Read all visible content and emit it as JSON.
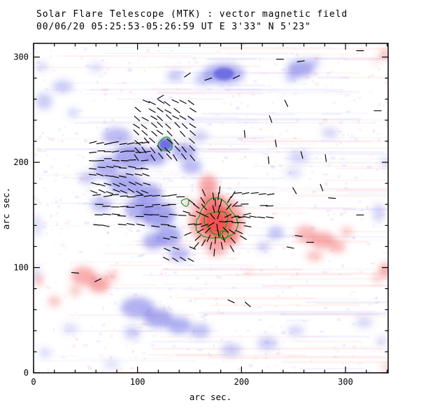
{
  "header": {
    "title_line1": "Solar Flare Telescope (MTK) : vector magnetic field",
    "title_line2": "00/06/20  05:25:53-05:26:59 UT    E 3'33\"  N 5'23\""
  },
  "chart_data": {
    "type": "heatmap",
    "title": "Solar Flare Telescope (MTK) : vector magnetic field",
    "datetime": "00/06/20 05:25:53-05:26:59 UT",
    "pointing": "E 3'33\" N 5'23\"",
    "xlabel": "arc sec.",
    "ylabel": "arc sec.",
    "xlim": [
      0,
      341
    ],
    "ylim": [
      0,
      313
    ],
    "x_ticks": [
      0,
      100,
      200,
      300
    ],
    "y_ticks": [
      0,
      100,
      200,
      300
    ],
    "minor_tick_step": 20,
    "colors": {
      "positive": "#f05050",
      "negative": "#5555e0",
      "positive_noise": "#ff8888",
      "negative_noise": "#8a8aff",
      "contour": "#00a000",
      "vector": "#000000"
    },
    "negative_regions": [
      [
        183,
        284,
        20,
        10,
        0.45
      ],
      [
        183,
        284,
        10,
        6,
        0.7
      ],
      [
        163,
        279,
        9,
        6,
        0.3
      ],
      [
        136,
        282,
        8,
        5,
        0.35
      ],
      [
        257,
        289,
        13,
        8,
        0.5
      ],
      [
        248,
        281,
        6,
        5,
        0.3
      ],
      [
        270,
        295,
        6,
        4,
        0.3
      ],
      [
        28,
        272,
        10,
        6,
        0.3
      ],
      [
        10,
        258,
        8,
        8,
        0.3
      ],
      [
        38,
        247,
        5,
        4,
        0.3
      ],
      [
        8,
        291,
        6,
        4,
        0.25
      ],
      [
        60,
        290,
        7,
        4,
        0.22
      ],
      [
        80,
        225,
        14,
        8,
        0.4
      ],
      [
        95,
        205,
        18,
        12,
        0.5
      ],
      [
        70,
        195,
        12,
        10,
        0.45
      ],
      [
        88,
        180,
        16,
        10,
        0.5
      ],
      [
        110,
        170,
        14,
        10,
        0.5
      ],
      [
        120,
        150,
        16,
        12,
        0.55
      ],
      [
        100,
        155,
        12,
        10,
        0.45
      ],
      [
        130,
        130,
        12,
        10,
        0.5
      ],
      [
        115,
        125,
        10,
        8,
        0.45
      ],
      [
        140,
        113,
        10,
        7,
        0.4
      ],
      [
        65,
        160,
        10,
        8,
        0.35
      ],
      [
        52,
        185,
        8,
        6,
        0.3
      ],
      [
        145,
        210,
        12,
        8,
        0.45
      ],
      [
        127,
        217,
        7,
        6,
        0.85
      ],
      [
        152,
        196,
        10,
        7,
        0.4
      ],
      [
        160,
        225,
        8,
        6,
        0.25
      ],
      [
        118,
        205,
        10,
        8,
        0.5
      ],
      [
        100,
        62,
        16,
        10,
        0.45
      ],
      [
        120,
        52,
        14,
        9,
        0.5
      ],
      [
        140,
        45,
        12,
        8,
        0.45
      ],
      [
        160,
        40,
        10,
        7,
        0.35
      ],
      [
        95,
        38,
        8,
        6,
        0.3
      ],
      [
        190,
        22,
        10,
        6,
        0.3
      ],
      [
        75,
        8,
        8,
        4,
        0.2
      ],
      [
        35,
        42,
        8,
        5,
        0.2
      ],
      [
        11,
        19,
        6,
        4,
        0.25
      ],
      [
        255,
        205,
        10,
        6,
        0.25
      ],
      [
        285,
        228,
        8,
        5,
        0.25
      ],
      [
        250,
        190,
        8,
        5,
        0.2
      ],
      [
        233,
        133,
        8,
        6,
        0.35
      ],
      [
        221,
        120,
        6,
        5,
        0.28
      ],
      [
        225,
        28,
        10,
        6,
        0.3
      ],
      [
        252,
        40,
        8,
        5,
        0.25
      ],
      [
        318,
        48,
        8,
        5,
        0.25
      ],
      [
        335,
        30,
        6,
        5,
        0.2
      ],
      [
        332,
        152,
        6,
        9,
        0.25
      ],
      [
        339,
        200,
        5,
        6,
        0.2
      ],
      [
        3,
        140,
        5,
        10,
        0.2
      ],
      [
        2,
        95,
        4,
        8,
        0.2
      ]
    ],
    "positive_regions": [
      [
        176,
        144,
        26,
        24,
        0.5
      ],
      [
        176,
        144,
        16,
        15,
        0.72
      ],
      [
        175,
        142,
        9,
        9,
        0.88
      ],
      [
        168,
        178,
        9,
        10,
        0.5
      ],
      [
        170,
        163,
        10,
        8,
        0.5
      ],
      [
        150,
        162,
        5,
        4,
        0.3
      ],
      [
        176,
        117,
        10,
        6,
        0.4
      ],
      [
        190,
        128,
        8,
        7,
        0.45
      ],
      [
        262,
        132,
        10,
        8,
        0.4
      ],
      [
        278,
        126,
        12,
        8,
        0.45
      ],
      [
        292,
        120,
        8,
        6,
        0.4
      ],
      [
        270,
        111,
        8,
        5,
        0.35
      ],
      [
        301,
        134,
        6,
        5,
        0.3
      ],
      [
        48,
        92,
        12,
        9,
        0.45
      ],
      [
        63,
        84,
        10,
        8,
        0.5
      ],
      [
        75,
        92,
        6,
        5,
        0.35
      ],
      [
        40,
        78,
        6,
        5,
        0.3
      ],
      [
        20,
        68,
        6,
        5,
        0.35
      ],
      [
        5,
        88,
        5,
        6,
        0.3
      ],
      [
        338,
        97,
        6,
        7,
        0.5
      ],
      [
        330,
        89,
        4,
        4,
        0.3
      ],
      [
        338,
        303,
        5,
        5,
        0.4
      ],
      [
        329,
        296,
        3,
        3,
        0.25
      ],
      [
        340,
        5,
        5,
        4,
        0.3
      ],
      [
        207,
        97,
        4,
        3,
        0.2
      ]
    ],
    "contours": [
      [
        176,
        145,
        19
      ],
      [
        176,
        143,
        11
      ],
      [
        127,
        217,
        6.5
      ],
      [
        146,
        162,
        3.5
      ],
      [
        183,
        131,
        4
      ]
    ],
    "vector_clusters": [
      {
        "type": "grid",
        "x0": 100,
        "x1": 152,
        "y0": 205,
        "y1": 257,
        "nx": 8,
        "ny": 8,
        "a0": 28,
        "a1": 52,
        "jitter": 18,
        "len": 10
      },
      {
        "type": "grid",
        "x0": 58,
        "x1": 108,
        "y0": 172,
        "y1": 218,
        "nx": 8,
        "ny": 7,
        "a0": -12,
        "a1": 25,
        "jitter": 14,
        "len": 10
      },
      {
        "type": "grid",
        "x0": 62,
        "x1": 142,
        "y0": 140,
        "y1": 168,
        "nx": 11,
        "ny": 4,
        "a0": -6,
        "a1": 8,
        "jitter": 8,
        "len": 11
      },
      {
        "type": "grid",
        "x0": 128,
        "x1": 152,
        "y0": 108,
        "y1": 128,
        "nx": 4,
        "ny": 3,
        "a0": 10,
        "a1": 28,
        "jitter": 10,
        "len": 9
      },
      {
        "type": "grid",
        "x0": 196,
        "x1": 228,
        "y0": 148,
        "y1": 170,
        "nx": 5,
        "ny": 3,
        "a0": -8,
        "a1": 8,
        "jitter": 6,
        "len": 10
      },
      {
        "type": "radial",
        "cx": 176,
        "cy": 144,
        "rings": [
          6,
          12,
          18,
          24,
          30
        ],
        "counts": [
          5,
          9,
          13,
          16,
          12
        ],
        "len": 10
      }
    ],
    "isolated_vectors": [
      [
        237,
        298,
        0
      ],
      [
        257,
        296,
        -8
      ],
      [
        314,
        306,
        0
      ],
      [
        331,
        249,
        0
      ],
      [
        233,
        218,
        80
      ],
      [
        226,
        202,
        85
      ],
      [
        203,
        227,
        85
      ],
      [
        258,
        207,
        75
      ],
      [
        281,
        204,
        82
      ],
      [
        277,
        176,
        70
      ],
      [
        251,
        173,
        60
      ],
      [
        287,
        166,
        5
      ],
      [
        314,
        150,
        0
      ],
      [
        195,
        281,
        -25
      ],
      [
        168,
        279,
        -18
      ],
      [
        148,
        283,
        -35
      ],
      [
        122,
        262,
        -30
      ],
      [
        206,
        65,
        40
      ],
      [
        190,
        68,
        25
      ],
      [
        255,
        130,
        8
      ],
      [
        266,
        124,
        0
      ],
      [
        247,
        119,
        12
      ],
      [
        62,
        88,
        -25
      ],
      [
        40,
        95,
        5
      ],
      [
        228,
        241,
        70
      ],
      [
        243,
        256,
        65
      ]
    ],
    "noise": {
      "seed": 12,
      "streaks": 170,
      "speckles": 650
    }
  }
}
